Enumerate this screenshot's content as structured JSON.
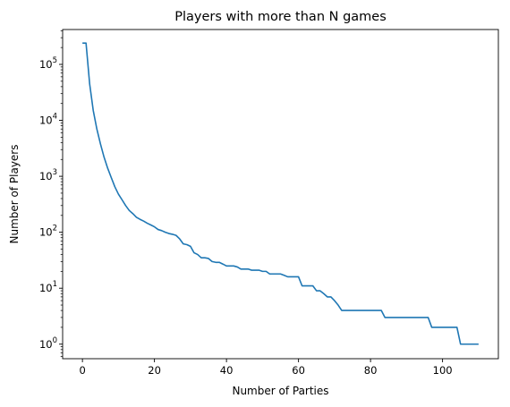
{
  "chart_data": {
    "type": "line",
    "title": "Players with more than N games",
    "xlabel": "Number of Parties",
    "ylabel": "Number of Players",
    "yscale": "log",
    "xlim": [
      -5.5,
      115.5
    ],
    "ylim": [
      0.55,
      420000
    ],
    "grid": false,
    "line_color": "#1f77b4",
    "x_ticks": [
      0,
      20,
      40,
      60,
      80,
      100
    ],
    "x_tick_labels": [
      "0",
      "20",
      "40",
      "60",
      "80",
      "100"
    ],
    "y_ticks": [
      1,
      10,
      100,
      1000,
      10000,
      100000
    ],
    "y_tick_labels": [
      {
        "base": "10",
        "exp": "0"
      },
      {
        "base": "10",
        "exp": "1"
      },
      {
        "base": "10",
        "exp": "2"
      },
      {
        "base": "10",
        "exp": "3"
      },
      {
        "base": "10",
        "exp": "4"
      },
      {
        "base": "10",
        "exp": "5"
      }
    ],
    "series": [
      {
        "x": [
          0,
          1,
          2,
          3,
          4,
          5,
          6,
          7,
          8,
          9,
          10,
          11,
          12,
          13,
          14,
          15,
          16,
          17,
          18,
          19,
          20,
          21,
          22,
          23,
          24,
          25,
          26,
          27,
          28,
          29,
          30,
          31,
          32,
          33,
          34,
          35,
          36,
          37,
          38,
          39,
          40,
          41,
          42,
          43,
          44,
          45,
          46,
          47,
          48,
          49,
          50,
          51,
          52,
          53,
          54,
          55,
          56,
          57,
          58,
          59,
          60,
          61,
          62,
          63,
          64,
          65,
          66,
          67,
          68,
          69,
          70,
          71,
          72,
          73,
          74,
          75,
          76,
          77,
          78,
          79,
          80,
          81,
          82,
          83,
          84,
          85,
          86,
          87,
          88,
          89,
          90,
          91,
          92,
          93,
          94,
          95,
          96,
          97,
          98,
          99,
          100,
          101,
          102,
          103,
          104,
          105,
          106,
          107,
          108,
          109,
          110
        ],
        "y": [
          240000,
          240000,
          45000,
          15000,
          7000,
          3800,
          2200,
          1400,
          950,
          650,
          480,
          380,
          300,
          245,
          215,
          185,
          170,
          158,
          145,
          135,
          125,
          112,
          107,
          100,
          95,
          92,
          88,
          76,
          62,
          60,
          56,
          43,
          40,
          35,
          35,
          34,
          30,
          29,
          29,
          27,
          25,
          25,
          25,
          24,
          22,
          22,
          22,
          21,
          21,
          21,
          20,
          20,
          18,
          18,
          18,
          18,
          17,
          16,
          16,
          16,
          16,
          11,
          11,
          11,
          11,
          9,
          9,
          8,
          7,
          7,
          6,
          5,
          4,
          4,
          4,
          4,
          4,
          4,
          4,
          4,
          4,
          4,
          4,
          4,
          3,
          3,
          3,
          3,
          3,
          3,
          3,
          3,
          3,
          3,
          3,
          3,
          3,
          2,
          2,
          2,
          2,
          2,
          2,
          2,
          2,
          1,
          1,
          1,
          1,
          1,
          1
        ]
      }
    ]
  }
}
